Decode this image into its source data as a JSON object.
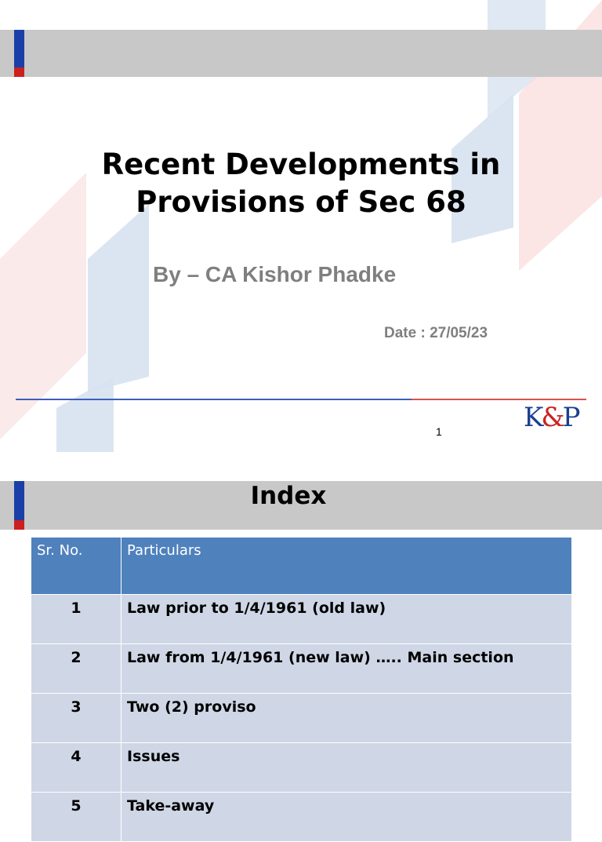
{
  "slide1": {
    "title_line1": "Recent Developments in",
    "title_line2": "Provisions of Sec 68",
    "byline": "By – CA Kishor Phadke",
    "date": "Date : 27/05/23",
    "logo_k": "K",
    "logo_amp": "&",
    "logo_p": "P",
    "page_number": "1"
  },
  "slide2": {
    "title": "Index",
    "table": {
      "headers": [
        "Sr. No.",
        "Particulars"
      ],
      "rows": [
        {
          "no": "1",
          "text": "Law prior to 1/4/1961 (old law)"
        },
        {
          "no": "2",
          "text": "Law from 1/4/1961 (new law) ….. Main section"
        },
        {
          "no": "3",
          "text": "Two (2) proviso"
        },
        {
          "no": "4",
          "text": "Issues"
        },
        {
          "no": "5",
          "text": "Take-away"
        }
      ]
    }
  },
  "colors": {
    "bar_gray": "#c8c8c8",
    "accent_blue": "#1a3fa8",
    "accent_red": "#cc1f1f",
    "header_blue": "#4f81bd",
    "row_fill": "#cfd7e6"
  }
}
